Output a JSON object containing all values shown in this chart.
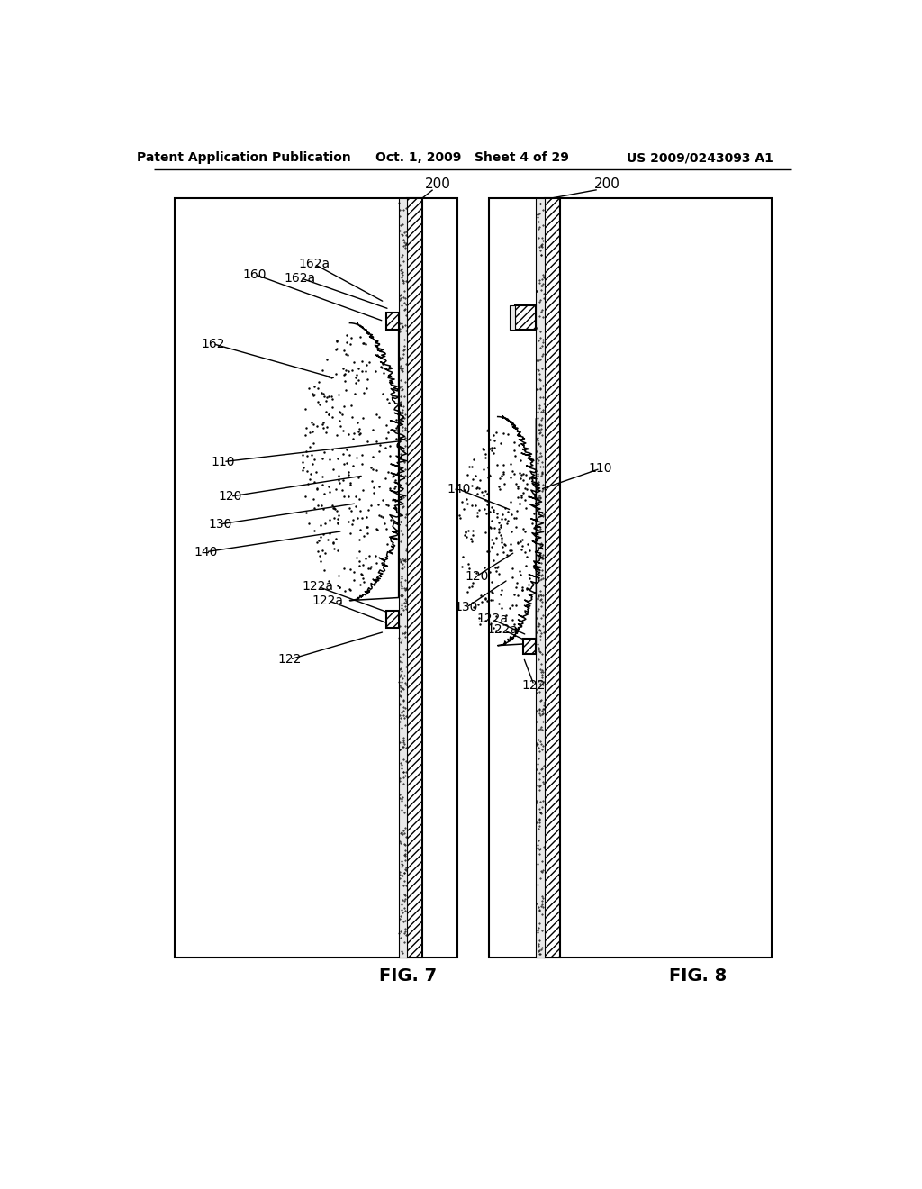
{
  "header_left": "Patent Application Publication",
  "header_center": "Oct. 1, 2009   Sheet 4 of 29",
  "header_right": "US 2009/0243093 A1",
  "fig7_label": "FIG. 7",
  "fig8_label": "FIG. 8",
  "bg_color": "#ffffff"
}
